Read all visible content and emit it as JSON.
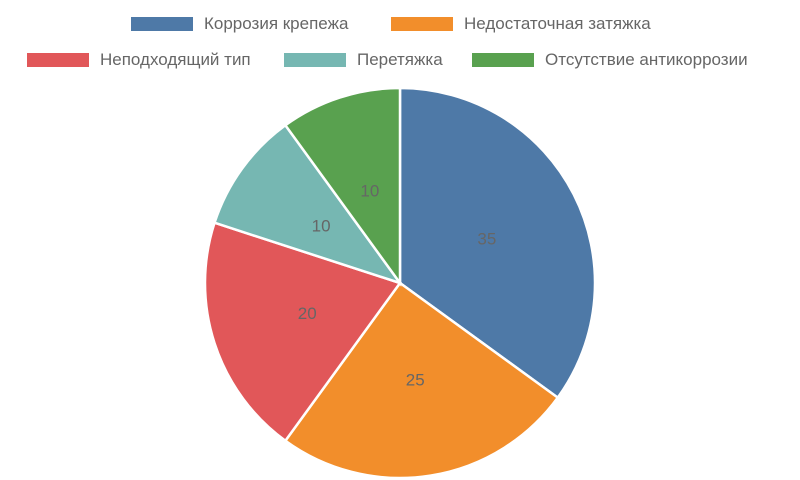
{
  "chart_data": {
    "type": "pie",
    "categories": [
      "Коррозия крепежа",
      "Недостаточная затяжка",
      "Неподходящий тип",
      "Перетяжка",
      "Отсутствие антикоррозии"
    ],
    "values": [
      35,
      25,
      20,
      10,
      10
    ],
    "colors": [
      "#4e79a7",
      "#f28e2b",
      "#e15759",
      "#76b7b2",
      "#59a14f"
    ],
    "data_labels": [
      "35",
      "25",
      "20",
      "10",
      "10"
    ],
    "legend_position": "top",
    "start_angle": "top, clockwise"
  }
}
